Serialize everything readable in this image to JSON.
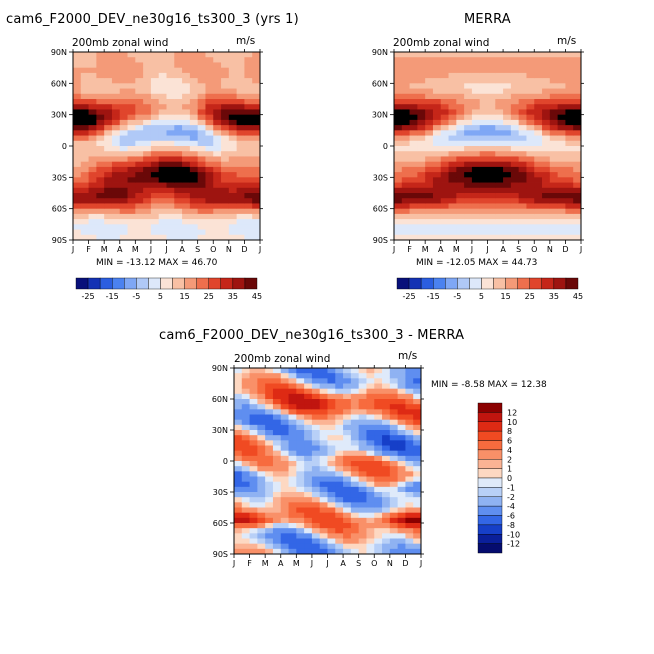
{
  "panels": [
    {
      "title": "cam6_F2000_DEV_ne30g16_ts300_3 (yrs 1)",
      "subtitle": "200mb zonal wind",
      "units": "m/s",
      "minmax": "MIN = -13.12  MAX =  46.70"
    },
    {
      "title": "MERRA",
      "subtitle": "200mb zonal wind",
      "units": "m/s",
      "minmax": "MIN = -12.05  MAX =  44.73"
    },
    {
      "title": "cam6_F2000_DEV_ne30g16_ts300_3 - MERRA",
      "subtitle": "200mb zonal wind",
      "units": "m/s",
      "minmax": "MIN =  -8.58  MAX =  12.38"
    }
  ],
  "chart_data": [
    {
      "type": "heatmap",
      "x": [
        "J",
        "F",
        "M",
        "A",
        "M",
        "J",
        "J",
        "A",
        "S",
        "O",
        "N",
        "D",
        "J"
      ],
      "y": [
        "90N",
        "60N",
        "30N",
        "0",
        "30S",
        "60S",
        "90S"
      ],
      "colorbar_labels": [
        "-25",
        "-15",
        "-5",
        "5",
        "15",
        "25",
        "35",
        "45"
      ],
      "colorbar_colors": [
        "#08107a",
        "#1432b4",
        "#2b5ee0",
        "#4b82f0",
        "#7fa7f5",
        "#b0c9f7",
        "#dde8fa",
        "#fbe3d6",
        "#f8c0a4",
        "#f49a78",
        "#ee6f4d",
        "#e0452c",
        "#c52619",
        "#9e1410",
        "#6a0808"
      ],
      "zonal_wind_structure": {
        "jets": [
          {
            "lat": "30N",
            "max_months": [
              "J",
              "F",
              "D"
            ]
          },
          {
            "lat": "30S",
            "max_months": [
              "J",
              "J",
              "A"
            ]
          },
          {
            "lat": "50S",
            "max_months": [
              "J",
              "D"
            ]
          }
        ],
        "easterlies": [
          {
            "lat": "0",
            "max_months": [
              "J",
              "J",
              "A"
            ]
          }
        ]
      }
    },
    {
      "type": "heatmap",
      "x": [
        "J",
        "F",
        "M",
        "A",
        "M",
        "J",
        "J",
        "A",
        "S",
        "O",
        "N",
        "D",
        "J"
      ],
      "y": [
        "90N",
        "60N",
        "30N",
        "0",
        "30S",
        "60S",
        "90S"
      ],
      "colorbar_labels": [
        "-25",
        "-15",
        "-5",
        "5",
        "15",
        "25",
        "35",
        "45"
      ],
      "colorbar_colors": [
        "#08107a",
        "#1432b4",
        "#2b5ee0",
        "#4b82f0",
        "#7fa7f5",
        "#b0c9f7",
        "#dde8fa",
        "#fbe3d6",
        "#f8c0a4",
        "#f49a78",
        "#ee6f4d",
        "#e0452c",
        "#c52619",
        "#9e1410",
        "#6a0808"
      ]
    },
    {
      "type": "heatmap",
      "x": [
        "J",
        "F",
        "M",
        "A",
        "M",
        "J",
        "J",
        "A",
        "S",
        "O",
        "N",
        "D",
        "J"
      ],
      "y": [
        "90N",
        "60N",
        "30N",
        "0",
        "30S",
        "60S",
        "90S"
      ],
      "colorbar_labels": [
        "12",
        "10",
        "8",
        "6",
        "4",
        "2",
        "1",
        "0",
        "-1",
        "-2",
        "-4",
        "-6",
        "-8",
        "-10",
        "-12"
      ],
      "colorbar_colors": [
        "#8b0000",
        "#c0150f",
        "#de2a14",
        "#f04a22",
        "#f76b3e",
        "#f99068",
        "#fbb394",
        "#fdd8c2",
        "#dfeafa",
        "#b8d0f7",
        "#8fb2f2",
        "#5f8ef0",
        "#3366e6",
        "#163fc8",
        "#0a1f9a",
        "#050c6e"
      ]
    }
  ]
}
